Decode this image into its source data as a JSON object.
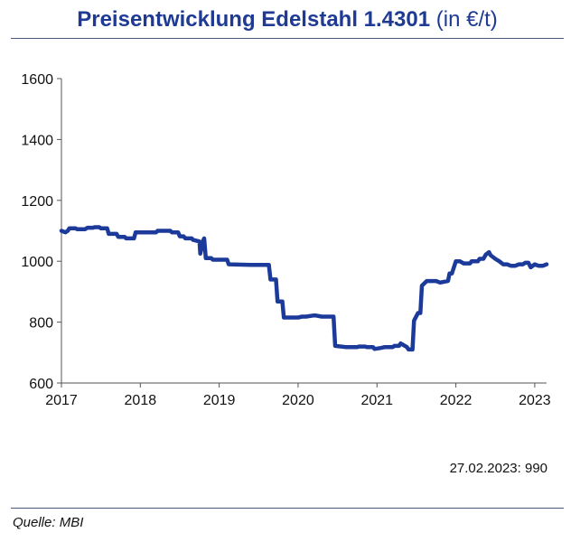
{
  "header": {
    "title_main": "Preisentwicklung Edelstahl 1.4301",
    "title_unit": "(in €/t)"
  },
  "annotation": "27.02.2023: 990",
  "source": "Quelle: MBI",
  "colors": {
    "line": "#1b3a9a",
    "title": "#1f3a93",
    "axis": "#555555"
  },
  "chart_data": {
    "type": "line",
    "title": "Preisentwicklung Edelstahl 1.4301 (in €/t)",
    "xlabel": "",
    "ylabel": "",
    "xlim": [
      2017.0,
      2023.15
    ],
    "ylim": [
      600,
      1600
    ],
    "grid": false,
    "x_ticks": [
      "2017",
      "2018",
      "2019",
      "2020",
      "2021",
      "2022",
      "2023"
    ],
    "y_ticks": [
      600,
      800,
      1000,
      1200,
      1400,
      1600
    ],
    "series": [
      {
        "x": [
          2017.0,
          2017.05,
          2017.08,
          2017.1,
          2017.18,
          2017.2,
          2017.3,
          2017.33,
          2017.4,
          2017.42,
          2017.48,
          2017.5,
          2017.58,
          2017.6,
          2017.7,
          2017.72,
          2017.8,
          2017.82,
          2017.92,
          2017.94,
          2018.0,
          2018.2,
          2018.22,
          2018.38,
          2018.4,
          2018.48,
          2018.5,
          2018.55,
          2018.57,
          2018.65,
          2018.67,
          2018.75,
          2018.76,
          2018.8,
          2018.81,
          2018.83,
          2018.9,
          2018.92,
          2019.1,
          2019.12,
          2019.4,
          2019.55,
          2019.63,
          2019.65,
          2019.72,
          2019.74,
          2019.8,
          2019.82,
          2020.0,
          2020.05,
          2020.1,
          2020.2,
          2020.22,
          2020.3,
          2020.32,
          2020.45,
          2020.47,
          2020.6,
          2020.62,
          2020.75,
          2020.77,
          2020.85,
          2020.87,
          2020.95,
          2020.97,
          2021.05,
          2021.1,
          2021.2,
          2021.22,
          2021.28,
          2021.3,
          2021.38,
          2021.4,
          2021.45,
          2021.47,
          2021.52,
          2021.55,
          2021.57,
          2021.63,
          2021.65,
          2021.75,
          2021.8,
          2021.9,
          2021.92,
          2021.95,
          2022.0,
          2022.05,
          2022.1,
          2022.18,
          2022.2,
          2022.28,
          2022.3,
          2022.35,
          2022.38,
          2022.42,
          2022.44,
          2022.5,
          2022.55,
          2022.6,
          2022.65,
          2022.7,
          2022.75,
          2022.8,
          2022.85,
          2022.88,
          2022.92,
          2022.95,
          2023.0,
          2023.05,
          2023.1,
          2023.15
        ],
        "values": [
          1100,
          1095,
          1100,
          1108,
          1108,
          1105,
          1105,
          1110,
          1110,
          1112,
          1112,
          1108,
          1108,
          1090,
          1090,
          1080,
          1080,
          1075,
          1075,
          1095,
          1095,
          1095,
          1100,
          1100,
          1095,
          1095,
          1082,
          1082,
          1075,
          1075,
          1070,
          1065,
          1025,
          1070,
          1075,
          1010,
          1010,
          1005,
          1005,
          990,
          988,
          988,
          988,
          940,
          940,
          868,
          868,
          815,
          815,
          818,
          818,
          822,
          822,
          818,
          818,
          818,
          722,
          718,
          718,
          718,
          720,
          720,
          718,
          718,
          712,
          715,
          718,
          718,
          722,
          722,
          730,
          718,
          710,
          710,
          805,
          830,
          830,
          920,
          935,
          935,
          935,
          930,
          935,
          960,
          960,
          1000,
          1000,
          993,
          993,
          1000,
          1000,
          1008,
          1008,
          1022,
          1030,
          1020,
          1008,
          1000,
          990,
          990,
          985,
          985,
          990,
          990,
          995,
          995,
          980,
          990,
          985,
          985,
          990
        ]
      }
    ]
  }
}
